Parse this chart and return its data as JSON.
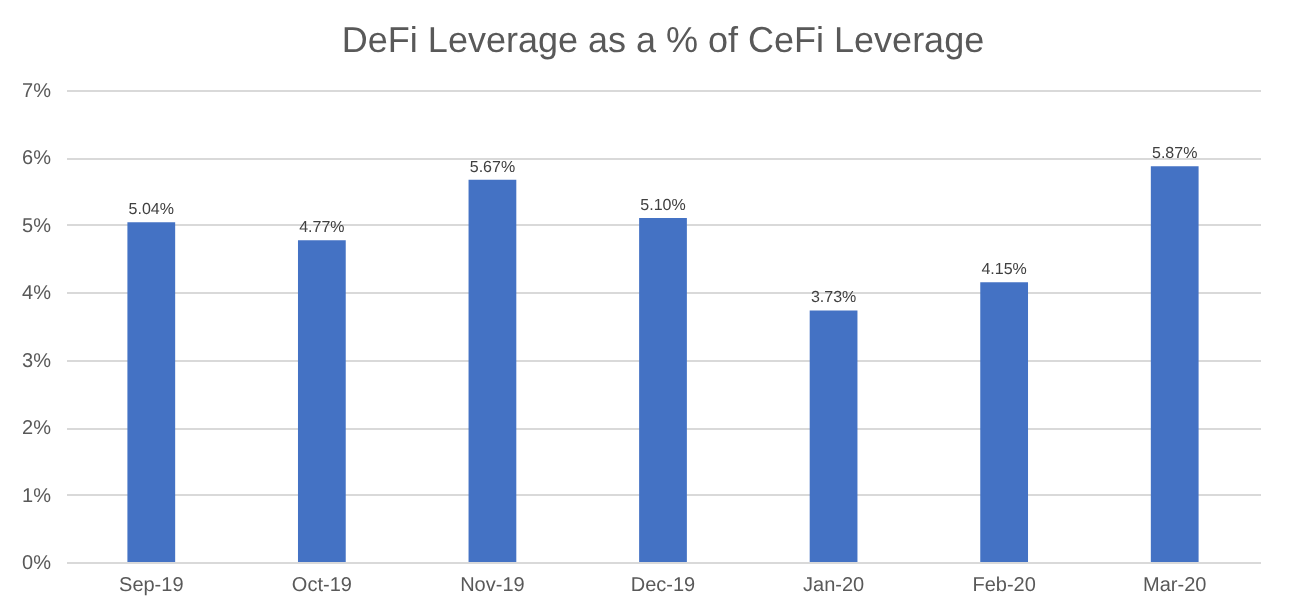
{
  "chart_data": {
    "type": "bar",
    "title": "DeFi Leverage as a % of CeFi Leverage",
    "categories": [
      "Sep-19",
      "Oct-19",
      "Nov-19",
      "Dec-19",
      "Jan-20",
      "Feb-20",
      "Mar-20"
    ],
    "values": [
      5.04,
      4.77,
      5.67,
      5.1,
      3.73,
      4.15,
      5.87
    ],
    "value_labels": [
      "5.04%",
      "4.77%",
      "5.67%",
      "5.10%",
      "3.73%",
      "4.15%",
      "5.87%"
    ],
    "color": "#4472c4",
    "ylim": [
      0,
      7
    ],
    "yticks": [
      {
        "value": 0,
        "label": "0%"
      },
      {
        "value": 1,
        "label": "1%"
      },
      {
        "value": 2,
        "label": "2%"
      },
      {
        "value": 3,
        "label": "3%"
      },
      {
        "value": 4,
        "label": "4%"
      },
      {
        "value": 5,
        "label": "5%"
      },
      {
        "value": 6,
        "label": "6%"
      },
      {
        "value": 7,
        "label": "7%"
      }
    ],
    "grid": "y"
  }
}
